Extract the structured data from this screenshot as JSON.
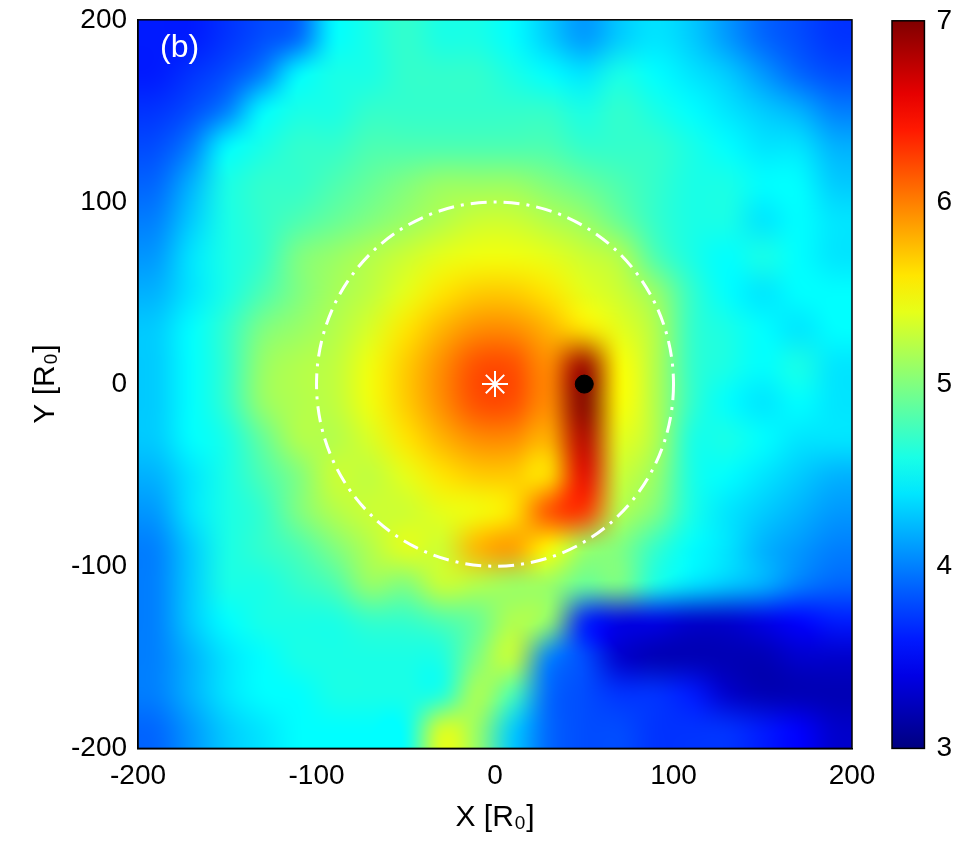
{
  "chart_data": {
    "type": "heatmap",
    "panel_label": "(b)",
    "x_label": "X [R₀]",
    "y_label": "Y [R₀]",
    "xlim": [
      -200,
      200
    ],
    "ylim": [
      -200,
      200
    ],
    "xticks": [
      -200,
      -100,
      0,
      100,
      200
    ],
    "yticks": [
      -200,
      -100,
      0,
      100,
      200
    ],
    "grid": false,
    "x": [
      -190,
      -170,
      -150,
      -130,
      -110,
      -90,
      -70,
      -50,
      -30,
      -10,
      10,
      30,
      50,
      70,
      90,
      110,
      130,
      150,
      170,
      190
    ],
    "y": [
      190,
      170,
      150,
      130,
      110,
      90,
      70,
      50,
      30,
      10,
      -10,
      -30,
      -50,
      -70,
      -90,
      -110,
      -130,
      -150,
      -170,
      -190
    ],
    "values": [
      [
        3.6,
        3.6,
        3.7,
        3.8,
        3.9,
        4.5,
        4.6,
        4.7,
        4.6,
        4.6,
        4.5,
        4.3,
        4.1,
        4.3,
        4.4,
        4.3,
        4.1,
        3.9,
        3.8,
        3.7
      ],
      [
        3.6,
        3.7,
        3.8,
        4.0,
        4.5,
        4.6,
        4.6,
        4.7,
        4.7,
        4.7,
        4.6,
        4.5,
        4.4,
        4.6,
        4.5,
        4.4,
        4.3,
        4.1,
        3.9,
        3.8
      ],
      [
        3.7,
        3.8,
        4.0,
        4.5,
        4.6,
        4.6,
        4.7,
        4.7,
        4.7,
        4.7,
        4.7,
        4.7,
        4.6,
        4.7,
        4.6,
        4.5,
        4.4,
        4.3,
        4.2,
        4.0
      ],
      [
        3.8,
        4.0,
        4.5,
        4.6,
        4.7,
        4.7,
        4.8,
        4.8,
        4.8,
        4.8,
        4.8,
        4.8,
        4.7,
        4.7,
        4.7,
        4.6,
        4.5,
        4.4,
        4.4,
        4.2
      ],
      [
        3.9,
        4.2,
        4.6,
        4.7,
        4.7,
        4.8,
        4.9,
        5.0,
        5.1,
        5.1,
        5.1,
        5.0,
        4.9,
        4.8,
        4.7,
        4.6,
        4.6,
        4.5,
        4.5,
        4.3
      ],
      [
        4.0,
        4.3,
        4.6,
        4.7,
        4.8,
        4.9,
        5.0,
        5.1,
        5.2,
        5.3,
        5.3,
        5.2,
        5.1,
        4.9,
        4.7,
        4.6,
        4.6,
        4.4,
        4.5,
        4.4
      ],
      [
        4.1,
        4.4,
        4.6,
        4.7,
        5.0,
        5.1,
        5.2,
        5.3,
        5.4,
        5.45,
        5.45,
        5.4,
        5.3,
        5.2,
        4.8,
        4.6,
        4.5,
        4.6,
        4.5,
        4.4
      ],
      [
        4.2,
        4.4,
        4.6,
        4.8,
        5.0,
        5.15,
        5.25,
        5.4,
        5.6,
        5.7,
        5.7,
        5.6,
        5.4,
        5.3,
        5.1,
        4.7,
        4.5,
        4.4,
        4.5,
        4.5
      ],
      [
        4.3,
        4.5,
        4.7,
        5.0,
        5.1,
        5.2,
        5.35,
        5.6,
        5.8,
        5.95,
        5.95,
        5.8,
        5.6,
        5.4,
        5.2,
        4.7,
        4.6,
        4.5,
        4.4,
        4.5
      ],
      [
        4.3,
        4.5,
        4.7,
        5.1,
        5.2,
        5.25,
        5.45,
        5.7,
        5.95,
        6.2,
        6.2,
        5.95,
        6.9,
        5.5,
        5.2,
        4.7,
        4.6,
        4.5,
        4.6,
        4.4
      ],
      [
        4.3,
        4.5,
        4.7,
        5.1,
        5.2,
        5.25,
        5.45,
        5.7,
        5.95,
        6.2,
        6.2,
        5.95,
        7.0,
        5.5,
        5.2,
        4.7,
        4.5,
        4.4,
        4.5,
        4.4
      ],
      [
        4.3,
        4.5,
        4.6,
        4.9,
        5.2,
        5.2,
        5.35,
        5.6,
        5.8,
        5.95,
        5.95,
        5.8,
        6.8,
        5.4,
        5.2,
        4.6,
        4.6,
        4.5,
        4.4,
        4.4
      ],
      [
        4.2,
        4.4,
        4.6,
        4.8,
        5.0,
        5.3,
        5.25,
        5.4,
        5.6,
        5.7,
        5.7,
        5.6,
        6.6,
        5.3,
        5.1,
        4.6,
        4.5,
        4.4,
        4.3,
        4.2
      ],
      [
        4.1,
        4.4,
        4.6,
        4.7,
        5.0,
        5.2,
        5.3,
        5.3,
        5.4,
        5.45,
        5.6,
        6.2,
        6.3,
        5.2,
        5.0,
        4.6,
        4.4,
        4.3,
        4.2,
        4.1
      ],
      [
        4.0,
        4.3,
        4.6,
        4.7,
        4.8,
        5.0,
        5.2,
        5.4,
        5.3,
        5.8,
        5.9,
        5.5,
        5.1,
        5.0,
        4.7,
        4.5,
        4.4,
        4.2,
        4.1,
        4.0
      ],
      [
        4.0,
        4.3,
        4.6,
        4.6,
        4.7,
        4.8,
        5.1,
        5.0,
        5.3,
        5.2,
        5.1,
        5.1,
        4.9,
        5.0,
        4.6,
        4.4,
        4.3,
        4.2,
        4.0,
        3.9
      ],
      [
        4.0,
        4.3,
        4.5,
        4.6,
        4.6,
        4.6,
        4.7,
        4.7,
        4.8,
        4.9,
        5.2,
        5.1,
        3.6,
        3.4,
        3.4,
        3.3,
        3.3,
        3.4,
        3.5,
        3.6
      ],
      [
        4.0,
        4.2,
        4.4,
        4.5,
        4.6,
        4.6,
        4.6,
        4.6,
        4.6,
        5.0,
        5.3,
        4.0,
        3.8,
        3.3,
        3.2,
        3.2,
        3.2,
        3.2,
        3.3,
        3.3
      ],
      [
        4.0,
        4.2,
        4.4,
        4.5,
        4.5,
        4.6,
        4.6,
        4.6,
        4.6,
        5.2,
        4.8,
        3.9,
        3.8,
        3.7,
        3.7,
        3.6,
        3.3,
        3.2,
        3.2,
        3.2
      ],
      [
        3.9,
        4.1,
        4.3,
        4.4,
        4.5,
        4.5,
        4.5,
        4.5,
        5.4,
        5.1,
        4.3,
        3.9,
        3.8,
        3.8,
        3.7,
        3.7,
        3.7,
        3.6,
        3.5,
        3.3
      ]
    ],
    "colorbar_range": [
      3,
      7
    ],
    "colorbar_ticks": [
      3,
      4,
      5,
      6,
      7
    ],
    "circle": {
      "x": 0,
      "y": 0,
      "r": 100,
      "color": "#ffffff",
      "line_style": "dashdot"
    },
    "points": [
      {
        "x": 0,
        "y": 0,
        "marker": "star",
        "color": "#ffffff"
      },
      {
        "x": 50,
        "y": 0,
        "marker": "circle",
        "color": "#000000"
      }
    ]
  }
}
